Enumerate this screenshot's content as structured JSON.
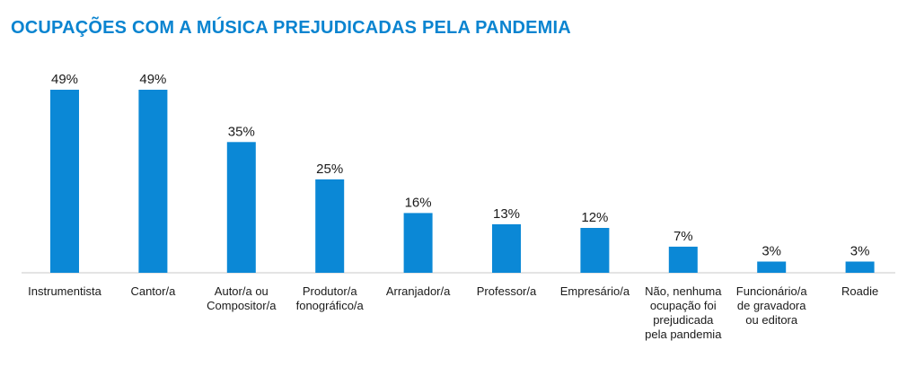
{
  "title": "OCUPAÇÕES COM A MÚSICA PREJUDICADAS PELA PANDEMIA",
  "colors": {
    "bar": "#0b88d6",
    "title": "#0a84d0"
  },
  "chart_data": {
    "type": "bar",
    "title": "OCUPAÇÕES COM A MÚSICA PREJUDICADAS PELA PANDEMIA",
    "categories": [
      [
        "Instrumentista"
      ],
      [
        "Cantor/a"
      ],
      [
        "Autor/a ou",
        "Compositor/a"
      ],
      [
        "Produtor/a",
        "fonográfico/a"
      ],
      [
        "Arranjador/a"
      ],
      [
        "Professor/a"
      ],
      [
        "Empresário/a"
      ],
      [
        "Não, nenhuma",
        "ocupação foi",
        "prejudicada",
        "pela pandemia"
      ],
      [
        "Funcionário/a",
        "de gravadora",
        "ou editora"
      ],
      [
        "Roadie"
      ]
    ],
    "values": [
      49,
      49,
      35,
      25,
      16,
      13,
      12,
      7,
      3,
      3
    ],
    "value_labels": [
      "49%",
      "49%",
      "35%",
      "25%",
      "16%",
      "13%",
      "12%",
      "7%",
      "3%",
      "3%"
    ],
    "unit": "%",
    "ylim": [
      0,
      49
    ]
  }
}
